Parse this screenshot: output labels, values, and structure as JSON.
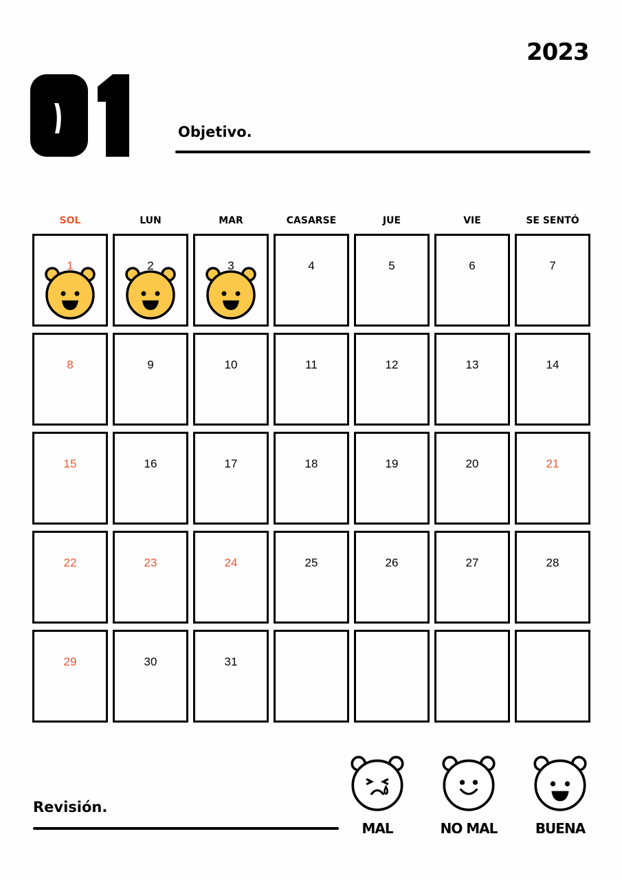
{
  "year": "2023",
  "month": "01",
  "goal_label": "Objetivo.",
  "review_label": "Revisión.",
  "weekdays": [
    "SOL",
    "LUN",
    "MAR",
    "CASARSE",
    "JUE",
    "VIE",
    "SE SENTÓ"
  ],
  "colors": {
    "accent_red": "#ef5533",
    "bear_yellow": "#fbc84a"
  },
  "days": [
    {
      "n": "1",
      "red": true,
      "bear": "happy"
    },
    {
      "n": "2",
      "bear": "happy"
    },
    {
      "n": "3",
      "bear": "happy"
    },
    {
      "n": "4"
    },
    {
      "n": "5"
    },
    {
      "n": "6"
    },
    {
      "n": "7"
    },
    {
      "n": "8",
      "red": true
    },
    {
      "n": "9"
    },
    {
      "n": "10"
    },
    {
      "n": "11"
    },
    {
      "n": "12"
    },
    {
      "n": "13"
    },
    {
      "n": "14"
    },
    {
      "n": "15",
      "red": true
    },
    {
      "n": "16"
    },
    {
      "n": "17"
    },
    {
      "n": "18"
    },
    {
      "n": "19"
    },
    {
      "n": "20"
    },
    {
      "n": "21",
      "red": true
    },
    {
      "n": "22",
      "red": true
    },
    {
      "n": "23",
      "red": true
    },
    {
      "n": "24",
      "red": true
    },
    {
      "n": "25"
    },
    {
      "n": "26"
    },
    {
      "n": "27"
    },
    {
      "n": "28"
    },
    {
      "n": "29",
      "red": true
    },
    {
      "n": "30"
    },
    {
      "n": "31"
    },
    {
      "n": ""
    },
    {
      "n": ""
    },
    {
      "n": ""
    },
    {
      "n": ""
    }
  ],
  "moods": [
    {
      "label": "MAL",
      "icon": "crying-bear-icon"
    },
    {
      "label": "NO MAL",
      "icon": "smiling-bear-icon"
    },
    {
      "label": "BUENA",
      "icon": "laughing-bear-icon"
    }
  ]
}
